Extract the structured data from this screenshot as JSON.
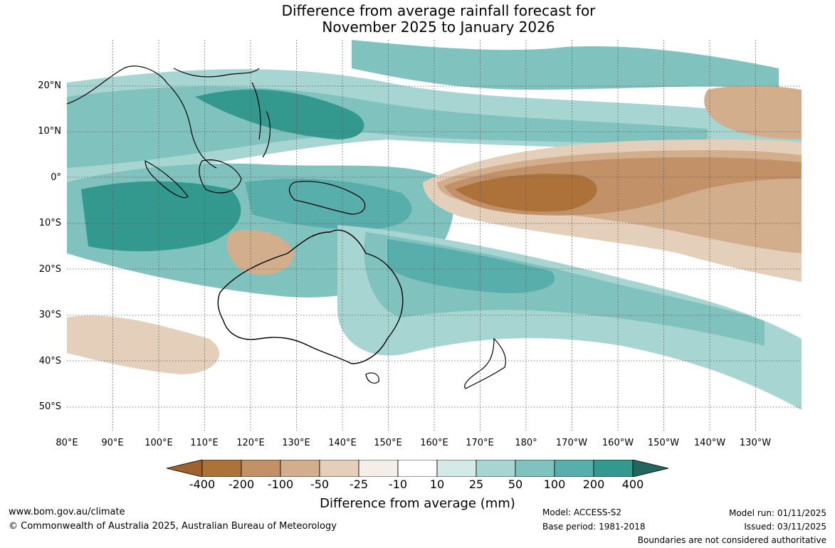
{
  "title": {
    "line1": "Difference from average rainfall forecast for",
    "line2": "November 2025 to January 2026"
  },
  "map": {
    "lat_labels": [
      "20°N",
      "10°N",
      "0°",
      "10°S",
      "20°S",
      "30°S",
      "40°S",
      "50°S"
    ],
    "lon_labels": [
      "80°E",
      "90°E",
      "100°E",
      "110°E",
      "120°E",
      "130°E",
      "140°E",
      "150°E",
      "160°E",
      "170°E",
      "180°",
      "170°W",
      "160°W",
      "150°W",
      "140°W",
      "130°W"
    ]
  },
  "colorbar": {
    "labels": [
      "-400",
      "-200",
      "-100",
      "-50",
      "-25",
      "-10",
      "10",
      "25",
      "50",
      "100",
      "200",
      "400"
    ],
    "colors": [
      "#ad7239",
      "#c39167",
      "#d2ae8d",
      "#e4cfba",
      "#f3eee8",
      "#ffffff",
      "#d4eae8",
      "#a7d5d2",
      "#7fc2be",
      "#58aeab",
      "#33998f",
      "#26736d"
    ],
    "low_arrow_color": "#a0622c",
    "high_arrow_color": "#24665f",
    "title": "Difference from average (mm)"
  },
  "footer": {
    "website": "www.bom.gov.au/climate",
    "copyright": "© Commonwealth of Australia 2025, Australian Bureau of Meteorology",
    "model": "Model: ACCESS-S2",
    "base_period": "Base period: 1981-2018",
    "model_run": "Model run: 01/11/2025",
    "issued": "Issued: 03/11/2025",
    "disclaimer": "Boundaries are not considered authoritative"
  }
}
